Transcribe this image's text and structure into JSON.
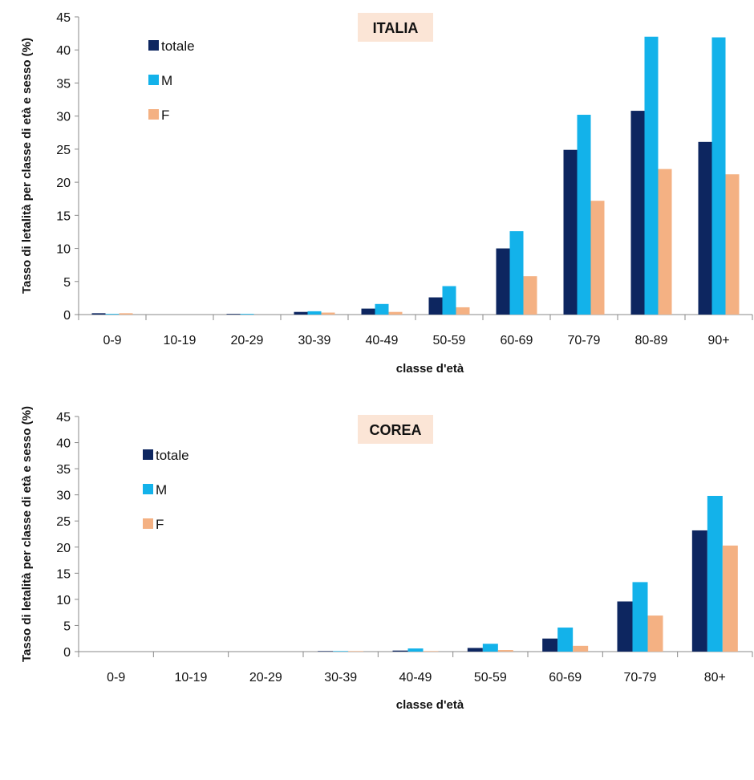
{
  "chart_data": [
    {
      "type": "bar",
      "title": "ITALIA",
      "xlabel": "classe d'età",
      "ylabel": "Tasso di letalità per classe di età e sesso (%)",
      "ylim": [
        0,
        45
      ],
      "yticks": [
        0,
        5,
        10,
        15,
        20,
        25,
        30,
        35,
        40,
        45
      ],
      "grid": false,
      "legend_placement": "top-left",
      "categories": [
        "0-9",
        "10-19",
        "20-29",
        "30-39",
        "40-49",
        "50-59",
        "60-69",
        "70-79",
        "80-89",
        "90+"
      ],
      "series": [
        {
          "name": "totale",
          "color": "#0d2660",
          "values": [
            0.2,
            0,
            0.1,
            0.4,
            0.9,
            2.6,
            10.0,
            24.9,
            30.8,
            26.1
          ]
        },
        {
          "name": "M",
          "color": "#13b2ea",
          "values": [
            0.1,
            0,
            0.1,
            0.5,
            1.6,
            4.3,
            12.6,
            30.2,
            42.0,
            41.9
          ]
        },
        {
          "name": "F",
          "color": "#f4b183",
          "values": [
            0.2,
            0,
            0,
            0.3,
            0.4,
            1.1,
            5.8,
            17.2,
            22.0,
            21.2
          ]
        }
      ]
    },
    {
      "type": "bar",
      "title": "COREA",
      "xlabel": "classe d'età",
      "ylabel": "Tasso di letalità per classe di età e sesso (%)",
      "ylim": [
        0,
        45
      ],
      "yticks": [
        0,
        5,
        10,
        15,
        20,
        25,
        30,
        35,
        40,
        45
      ],
      "grid": false,
      "legend_placement": "top-left",
      "categories": [
        "0-9",
        "10-19",
        "20-29",
        "30-39",
        "40-49",
        "50-59",
        "60-69",
        "70-79",
        "80+"
      ],
      "series": [
        {
          "name": "totale",
          "color": "#0d2660",
          "values": [
            0,
            0,
            0,
            0.1,
            0.2,
            0.7,
            2.5,
            9.6,
            23.2
          ]
        },
        {
          "name": "M",
          "color": "#13b2ea",
          "values": [
            0,
            0,
            0,
            0.1,
            0.6,
            1.5,
            4.6,
            13.3,
            29.8
          ]
        },
        {
          "name": "F",
          "color": "#f4b183",
          "values": [
            0,
            0,
            0,
            0.1,
            0.1,
            0.3,
            1.1,
            6.9,
            20.3
          ]
        }
      ]
    }
  ],
  "title_box_color": "#fbe5d6",
  "axis_color": "#888888"
}
